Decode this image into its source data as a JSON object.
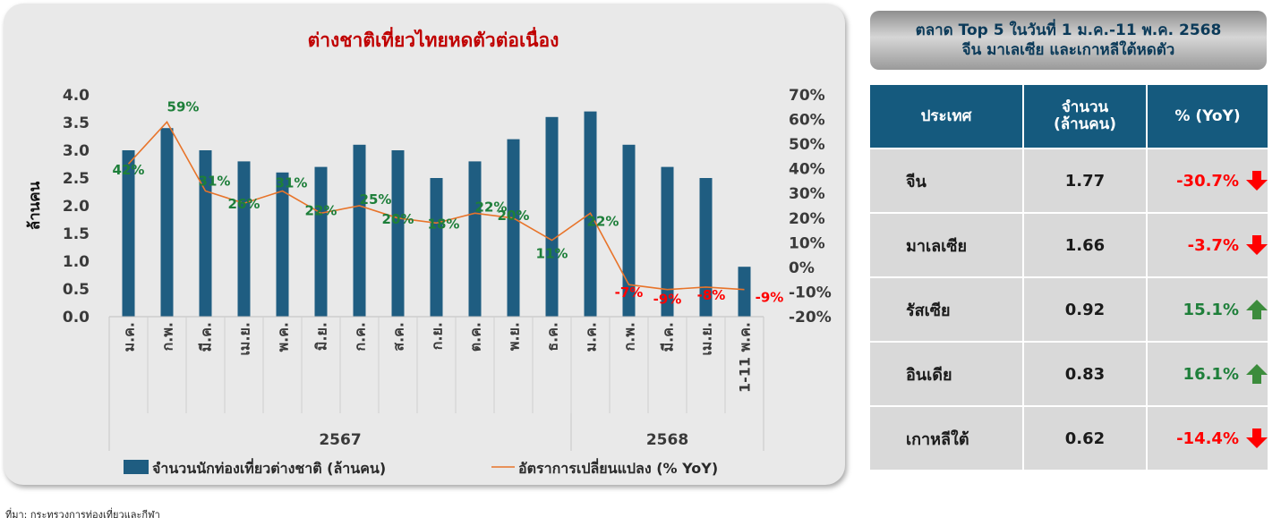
{
  "chart_data": {
    "type": "bar",
    "title": "ต่างชาติเที่ยวไทยหดตัวต่อเนื่อง",
    "ylabel": "ล้านคน",
    "categories": [
      "ม.ค.",
      "ก.พ.",
      "มี.ค.",
      "เม.ย.",
      "พ.ค.",
      "มิ.ย.",
      "ก.ค.",
      "ส.ค.",
      "ก.ย.",
      "ต.ค.",
      "พ.ย.",
      "ธ.ค.",
      "ม.ค.",
      "ก.พ.",
      "มี.ค.",
      "เม.ย.",
      "1-11 พ.ค."
    ],
    "year_groups": [
      {
        "label": "2567",
        "count": 12
      },
      {
        "label": "2568",
        "count": 5
      }
    ],
    "series": [
      {
        "name": "จำนวนนักท่องเที่ยวต่างชาติ (ล้านคน)",
        "type": "bar",
        "axis": "left",
        "color": "#1f5d81",
        "values": [
          3.0,
          3.4,
          3.0,
          2.8,
          2.6,
          2.7,
          3.1,
          3.0,
          2.5,
          2.8,
          3.2,
          3.6,
          3.7,
          3.1,
          2.7,
          2.5,
          0.9
        ]
      },
      {
        "name": "อัตราการเปลี่ยนแปลง (% YoY)",
        "type": "line",
        "axis": "right",
        "color": "#e8742a",
        "values": [
          42,
          59,
          31,
          26,
          31,
          22,
          25,
          20,
          18,
          22,
          20,
          11,
          22,
          -7,
          -9,
          -8,
          -9
        ],
        "labels": [
          "42%",
          "59%",
          "31%",
          "26%",
          "31%",
          "22%",
          "25%",
          "20%",
          "18%",
          "22%",
          "20%",
          "11%",
          "22%",
          "-7%",
          "-9%",
          "-8%",
          "-9%"
        ]
      }
    ],
    "ylim": [
      0,
      4
    ],
    "yticks": [
      "0.0",
      "0.5",
      "1.0",
      "1.5",
      "2.0",
      "2.5",
      "3.0",
      "3.5",
      "4.0"
    ],
    "y2lim": [
      -20,
      70
    ],
    "y2ticks": [
      "-20%",
      "-10%",
      "0%",
      "10%",
      "20%",
      "30%",
      "40%",
      "50%",
      "60%",
      "70%"
    ],
    "grid": false,
    "legend_position": "bottom",
    "colors": {
      "title": "#c00000",
      "label_positive": "#1e7f3a",
      "label_negative": "#ff0000"
    }
  },
  "side_panel": {
    "title_line1": "ตลาด Top 5  ในวันที่ 1 ม.ค.-11 พ.ค. 2568",
    "title_line2": "จีน มาเลเซีย และเกาหลีใต้หดตัว",
    "headers": [
      "ประเทศ",
      "จำนวน",
      "(ล้านคน)",
      "% (YoY)"
    ],
    "rows": [
      {
        "country": "จีน",
        "value": "1.77",
        "yoy": "-30.7%",
        "direction": "down"
      },
      {
        "country": "มาเลเซีย",
        "value": "1.66",
        "yoy": "-3.7%",
        "direction": "down"
      },
      {
        "country": "รัสเซีย",
        "value": "0.92",
        "yoy": "15.1%",
        "direction": "up"
      },
      {
        "country": "อินเดีย",
        "value": "0.83",
        "yoy": "16.1%",
        "direction": "up"
      },
      {
        "country": "เกาหลีใต้",
        "value": "0.62",
        "yoy": "-14.4%",
        "direction": "down"
      }
    ],
    "colors": {
      "header_bg": "#155a7e",
      "negative": "#ff0000",
      "positive": "#1e7f3a",
      "arrow_down": "#ff0000",
      "arrow_up": "#3c8c3c"
    }
  },
  "source_note": "ที่มา: กระทรวงการท่องเที่ยวและกีฬา"
}
